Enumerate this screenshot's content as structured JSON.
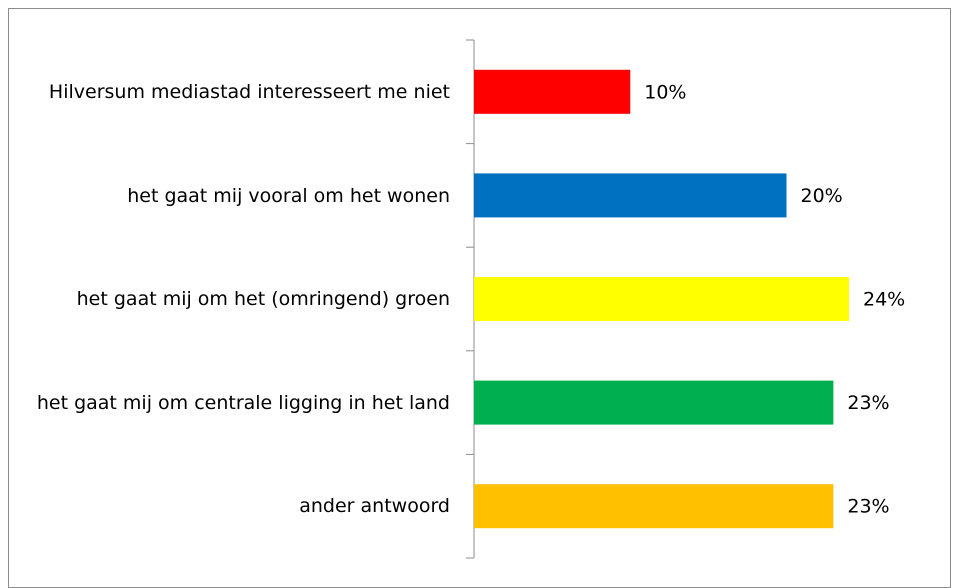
{
  "chart_data": {
    "type": "bar",
    "orientation": "horizontal",
    "categories": [
      "Hilversum mediastad interesseert  me niet",
      "het gaat mij vooral om het wonen",
      "het gaat mij om het (omringend) groen",
      "het gaat mij om centrale ligging in het land",
      "ander antwoord"
    ],
    "values": [
      10,
      20,
      24,
      23,
      23
    ],
    "value_labels": [
      "10%",
      "20%",
      "24%",
      "23%",
      "23%"
    ],
    "colors": [
      "#ff0000",
      "#0070c0",
      "#ffff00",
      "#00b050",
      "#ffc000"
    ]
  }
}
